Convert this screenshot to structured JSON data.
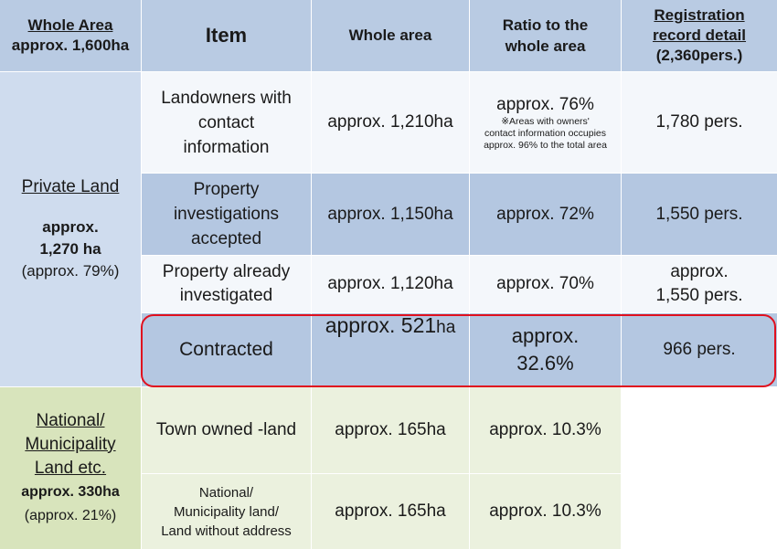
{
  "header": {
    "whole_area_title": "Whole Area",
    "whole_area_value": "approx. 1,600ha",
    "item": "Item",
    "whole_area": "Whole area",
    "ratio_line1": "Ratio to the",
    "ratio_line2": "whole area",
    "reg_line1": "Registration",
    "reg_line2": "record detail",
    "reg_line3": "(2,360pers.)"
  },
  "private": {
    "title": "Private Land",
    "approx": "approx.",
    "value": "1,270 ha",
    "pct": "(approx. 79%)"
  },
  "national": {
    "title1": "National/",
    "title2": "Municipality",
    "title3": "Land etc.",
    "value": "approx. 330ha",
    "pct": "(approx. 21%)"
  },
  "rows": [
    {
      "item": [
        "Landowners with",
        "contact",
        "information"
      ],
      "area": "approx. 1,210ha",
      "ratio": "approx. 76%",
      "note": [
        "※Areas with owners'",
        "contact information occupies",
        "approx. 96% to the total area"
      ],
      "reg": "1,780 pers."
    },
    {
      "item": [
        "Property",
        "investigations",
        "accepted"
      ],
      "area": "approx. 1,150ha",
      "ratio": "approx. 72%",
      "reg": "1,550 pers."
    },
    {
      "item": [
        "Property already",
        "investigated"
      ],
      "area": "approx. 1,120ha",
      "ratio": "approx. 70%",
      "reg": [
        "approx.",
        "1,550 pers."
      ]
    },
    {
      "item": [
        "Contracted"
      ],
      "area_main": "approx. 521",
      "area_unit": "ha",
      "ratio": [
        "approx.",
        "32.6%"
      ],
      "reg": "966 pers."
    },
    {
      "item": [
        "Town owned -land"
      ],
      "area": "approx. 165ha",
      "ratio": "approx. 10.3%"
    },
    {
      "item": [
        "National/",
        "Municipality land/",
        "Land without address"
      ],
      "area": "approx. 165ha",
      "ratio": "approx. 10.3%"
    }
  ]
}
